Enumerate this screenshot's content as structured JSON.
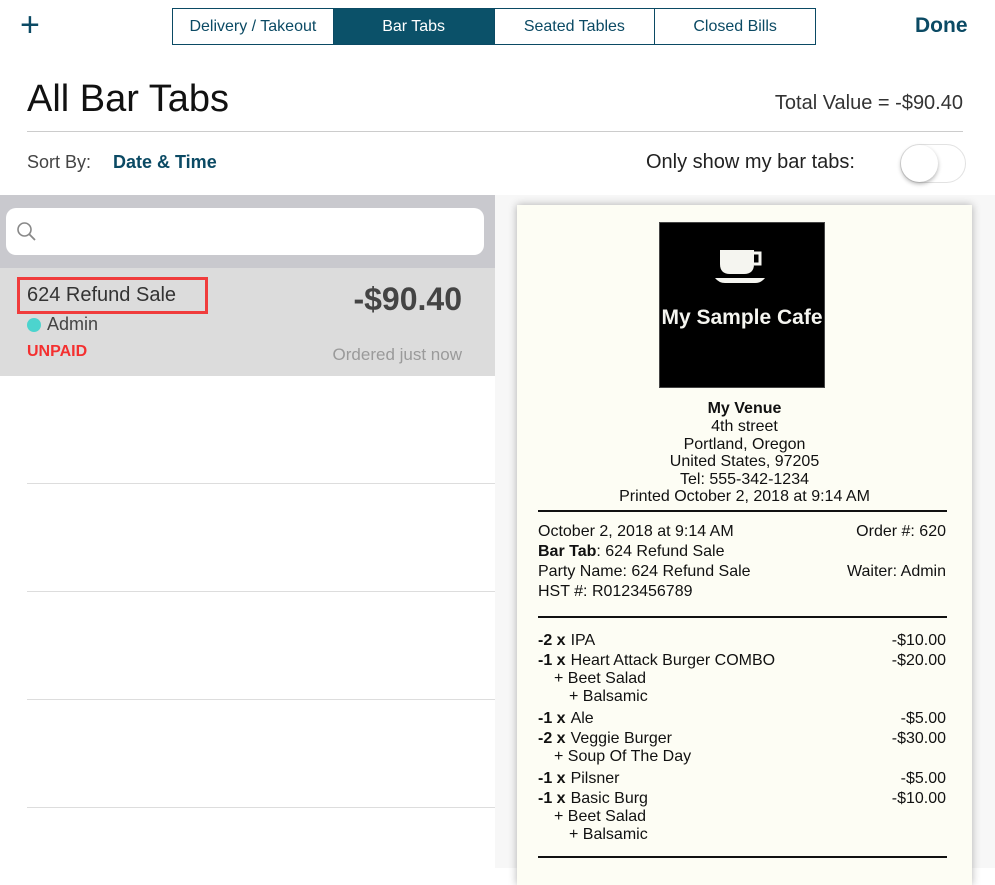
{
  "header": {
    "add_icon": "plus-icon",
    "tabs": [
      "Delivery / Takeout",
      "Bar Tabs",
      "Seated Tables",
      "Closed Bills"
    ],
    "active_tab": "Bar Tabs",
    "done": "Done",
    "accent": "#0b5169"
  },
  "page": {
    "title": "All Bar Tabs",
    "total": "Total Value = -$90.40",
    "sort_label": "Sort By:",
    "sort_value": "Date & Time",
    "only_mine_label": "Only show my bar tabs:",
    "only_mine_on": false
  },
  "search": {
    "placeholder": "",
    "icon": "search-icon"
  },
  "tabs": [
    {
      "name": "624 Refund Sale",
      "waiter": "Admin",
      "status": "UNPAID",
      "amount": "-$90.40",
      "ordered": "Ordered just now"
    }
  ],
  "receipt": {
    "logo_text": "My Sample Cafe",
    "venue": "My Venue",
    "address": [
      "4th street",
      "Portland, Oregon",
      "United States, 97205",
      "Tel: 555-342-1234",
      "Printed October 2, 2018 at 9:14 AM"
    ],
    "date": "October 2, 2018 at 9:14 AM",
    "order": "Order #: 620",
    "bar_tab_label": "Bar Tab",
    "bar_tab_value": ": 624 Refund Sale",
    "party": "Party Name: 624 Refund Sale",
    "waiter": "Waiter: Admin",
    "hst": "HST #: R0123456789",
    "items": [
      {
        "qty": "-2 x",
        "name": "IPA",
        "price": "-$10.00",
        "mods": []
      },
      {
        "qty": "-1 x",
        "name": "Heart Attack Burger COMBO",
        "price": "-$20.00",
        "mods": [
          "+ Beet Salad",
          "+ Balsamic"
        ]
      },
      {
        "qty": "-1 x",
        "name": "Ale",
        "price": "-$5.00",
        "mods": []
      },
      {
        "qty": "-2 x",
        "name": "Veggie Burger",
        "price": "-$30.00",
        "mods": [
          "+ Soup Of The Day"
        ]
      },
      {
        "qty": "-1 x",
        "name": "Pilsner",
        "price": "-$5.00",
        "mods": []
      },
      {
        "qty": "-1 x",
        "name": "Basic Burg",
        "price": "-$10.00",
        "mods": [
          "+ Beet Salad",
          "+ Balsamic"
        ]
      }
    ]
  }
}
